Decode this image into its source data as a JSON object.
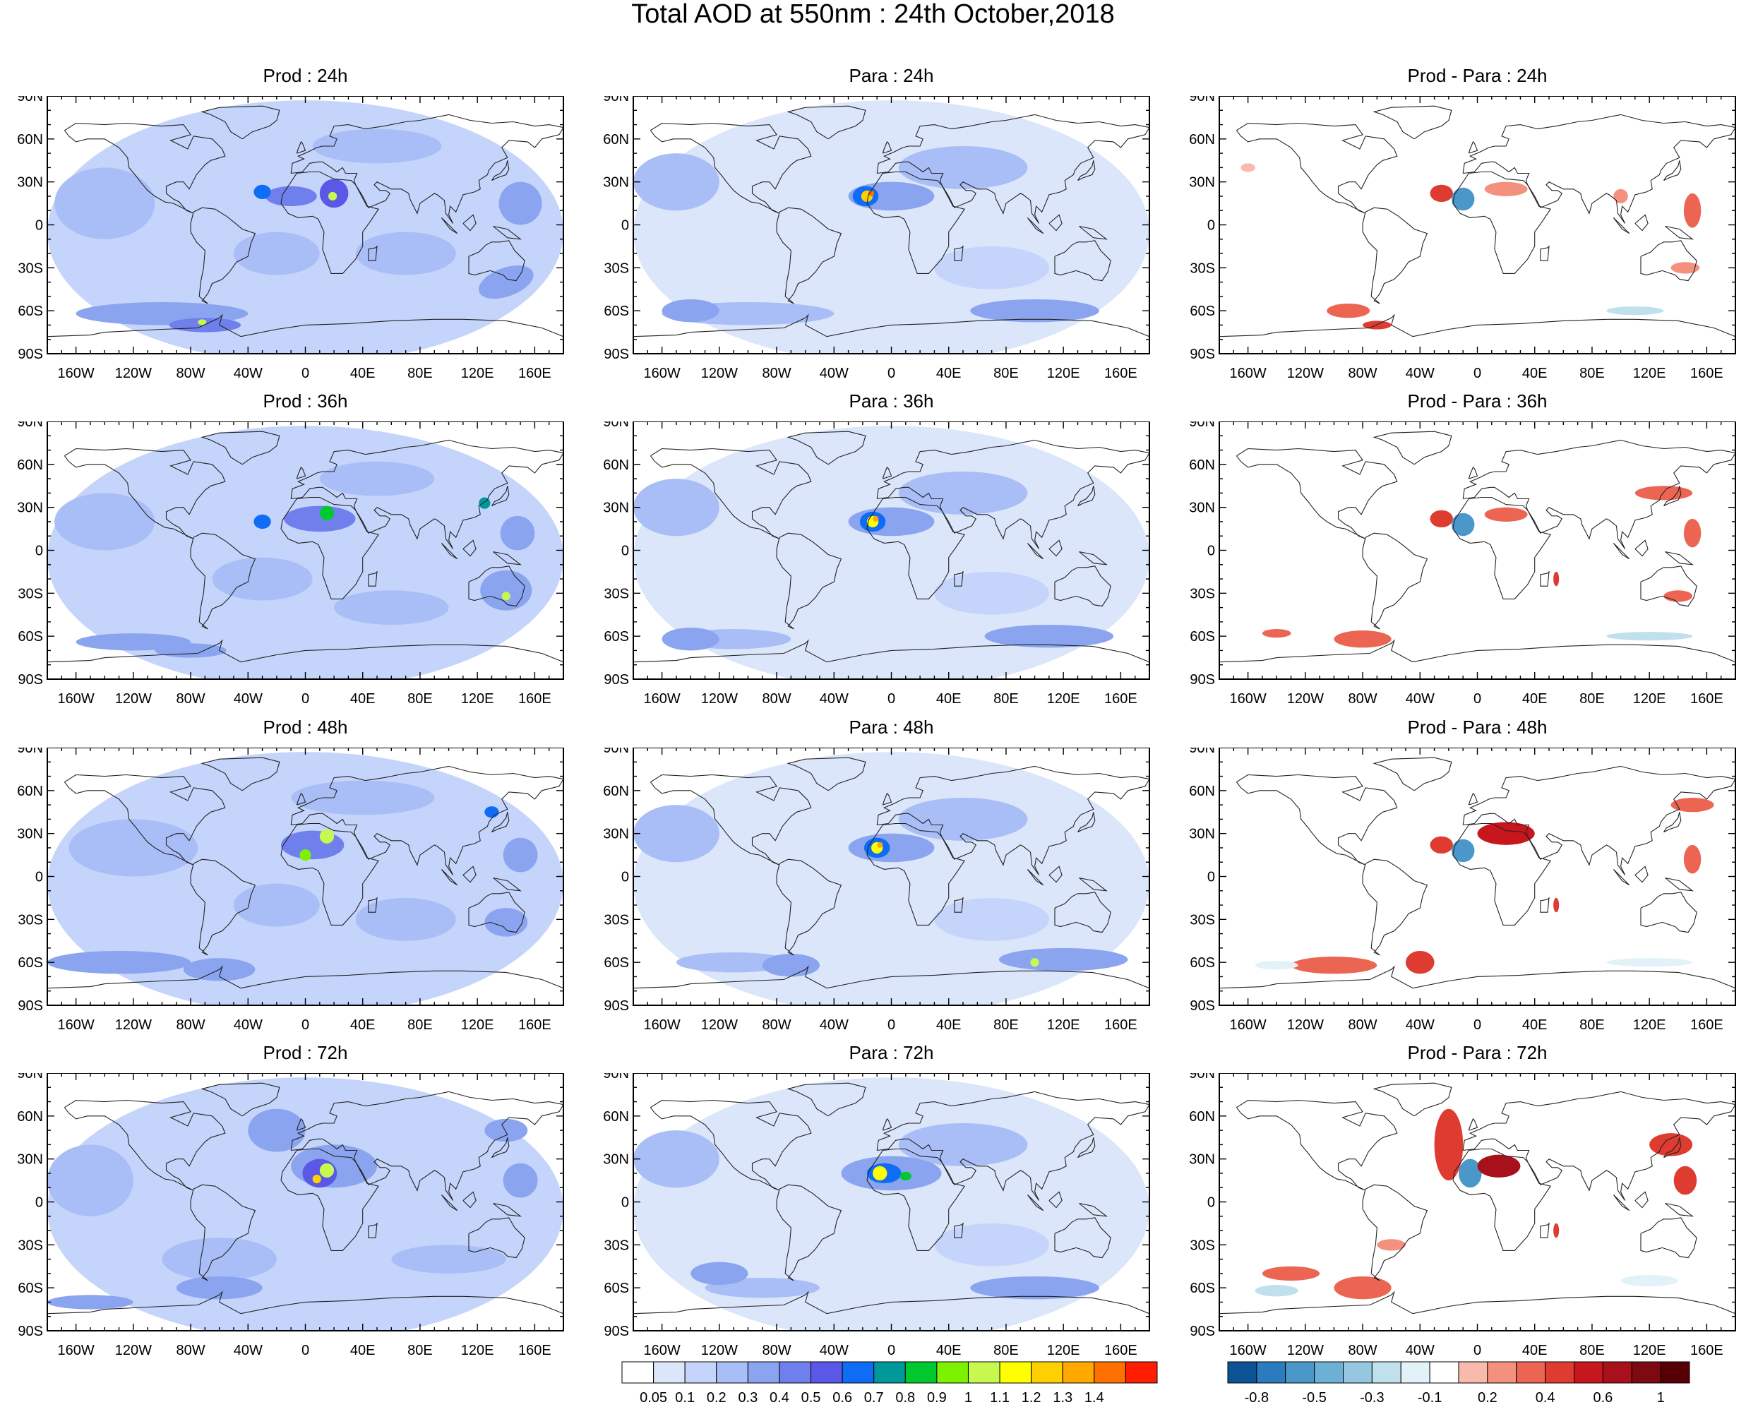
{
  "title": "Total AOD at 550nm : 24th October,2018",
  "columns": [
    "Prod",
    "Para",
    "Prod - Para"
  ],
  "rows": [
    "24h",
    "36h",
    "48h",
    "72h"
  ],
  "panels": [
    {
      "title": "Prod : 24h",
      "field": "prod",
      "lead": "24h"
    },
    {
      "title": "Para : 24h",
      "field": "para",
      "lead": "24h"
    },
    {
      "title": "Prod - Para : 24h",
      "field": "diff",
      "lead": "24h"
    },
    {
      "title": "Prod : 36h",
      "field": "prod",
      "lead": "36h"
    },
    {
      "title": "Para : 36h",
      "field": "para",
      "lead": "36h"
    },
    {
      "title": "Prod - Para : 36h",
      "field": "diff",
      "lead": "36h"
    },
    {
      "title": "Prod : 48h",
      "field": "prod",
      "lead": "48h"
    },
    {
      "title": "Para : 48h",
      "field": "para",
      "lead": "48h"
    },
    {
      "title": "Prod - Para : 48h",
      "field": "diff",
      "lead": "48h"
    },
    {
      "title": "Prod : 72h",
      "field": "prod",
      "lead": "72h"
    },
    {
      "title": "Para : 72h",
      "field": "para",
      "lead": "72h"
    },
    {
      "title": "Prod - Para : 72h",
      "field": "diff",
      "lead": "72h"
    }
  ],
  "axes": {
    "lat_ticks": [
      {
        "value": 90,
        "label": "90N"
      },
      {
        "value": 60,
        "label": "60N"
      },
      {
        "value": 30,
        "label": "30N"
      },
      {
        "value": 0,
        "label": "0"
      },
      {
        "value": -30,
        "label": "30S"
      },
      {
        "value": -60,
        "label": "60S"
      },
      {
        "value": -90,
        "label": "90S"
      }
    ],
    "lon_ticks": [
      {
        "value": -160,
        "label": "160W"
      },
      {
        "value": -120,
        "label": "120W"
      },
      {
        "value": -80,
        "label": "80W"
      },
      {
        "value": -40,
        "label": "40W"
      },
      {
        "value": 0,
        "label": "0"
      },
      {
        "value": 40,
        "label": "40E"
      },
      {
        "value": 80,
        "label": "80E"
      },
      {
        "value": 120,
        "label": "120E"
      },
      {
        "value": 160,
        "label": "160E"
      }
    ],
    "lon_range": [
      -180,
      180
    ],
    "lat_range": [
      -90,
      90
    ]
  },
  "colorbars": {
    "aod": {
      "labels": [
        "0.05",
        "0.1",
        "0.2",
        "0.3",
        "0.4",
        "0.5",
        "0.6",
        "0.7",
        "0.8",
        "0.9",
        "1",
        "1.1",
        "1.2",
        "1.3",
        "1.4"
      ],
      "colors": [
        "#ffffff",
        "#dbe6fb",
        "#c5d4fa",
        "#a9bef6",
        "#8aa4f0",
        "#6f7fec",
        "#5b57e7",
        "#0f6df5",
        "#00989a",
        "#00c92f",
        "#7cf200",
        "#c6f84f",
        "#ffff00",
        "#ffd000",
        "#ffa800",
        "#ff7000",
        "#ff1e00"
      ]
    },
    "diff": {
      "labels": [
        "-0.8",
        "-0.5",
        "-0.3",
        "-0.1",
        "0.2",
        "0.4",
        "0.6",
        "1"
      ],
      "colors": [
        "#0b5394",
        "#2b7bbf",
        "#4a98ca",
        "#6cb0d6",
        "#95c8e0",
        "#bfe0ec",
        "#e2f2f8",
        "#ffffff",
        "#f9b9ab",
        "#f4907e",
        "#ec6553",
        "#de3c31",
        "#c8161d",
        "#a8101b",
        "#7d0a12",
        "#560006"
      ]
    }
  }
}
